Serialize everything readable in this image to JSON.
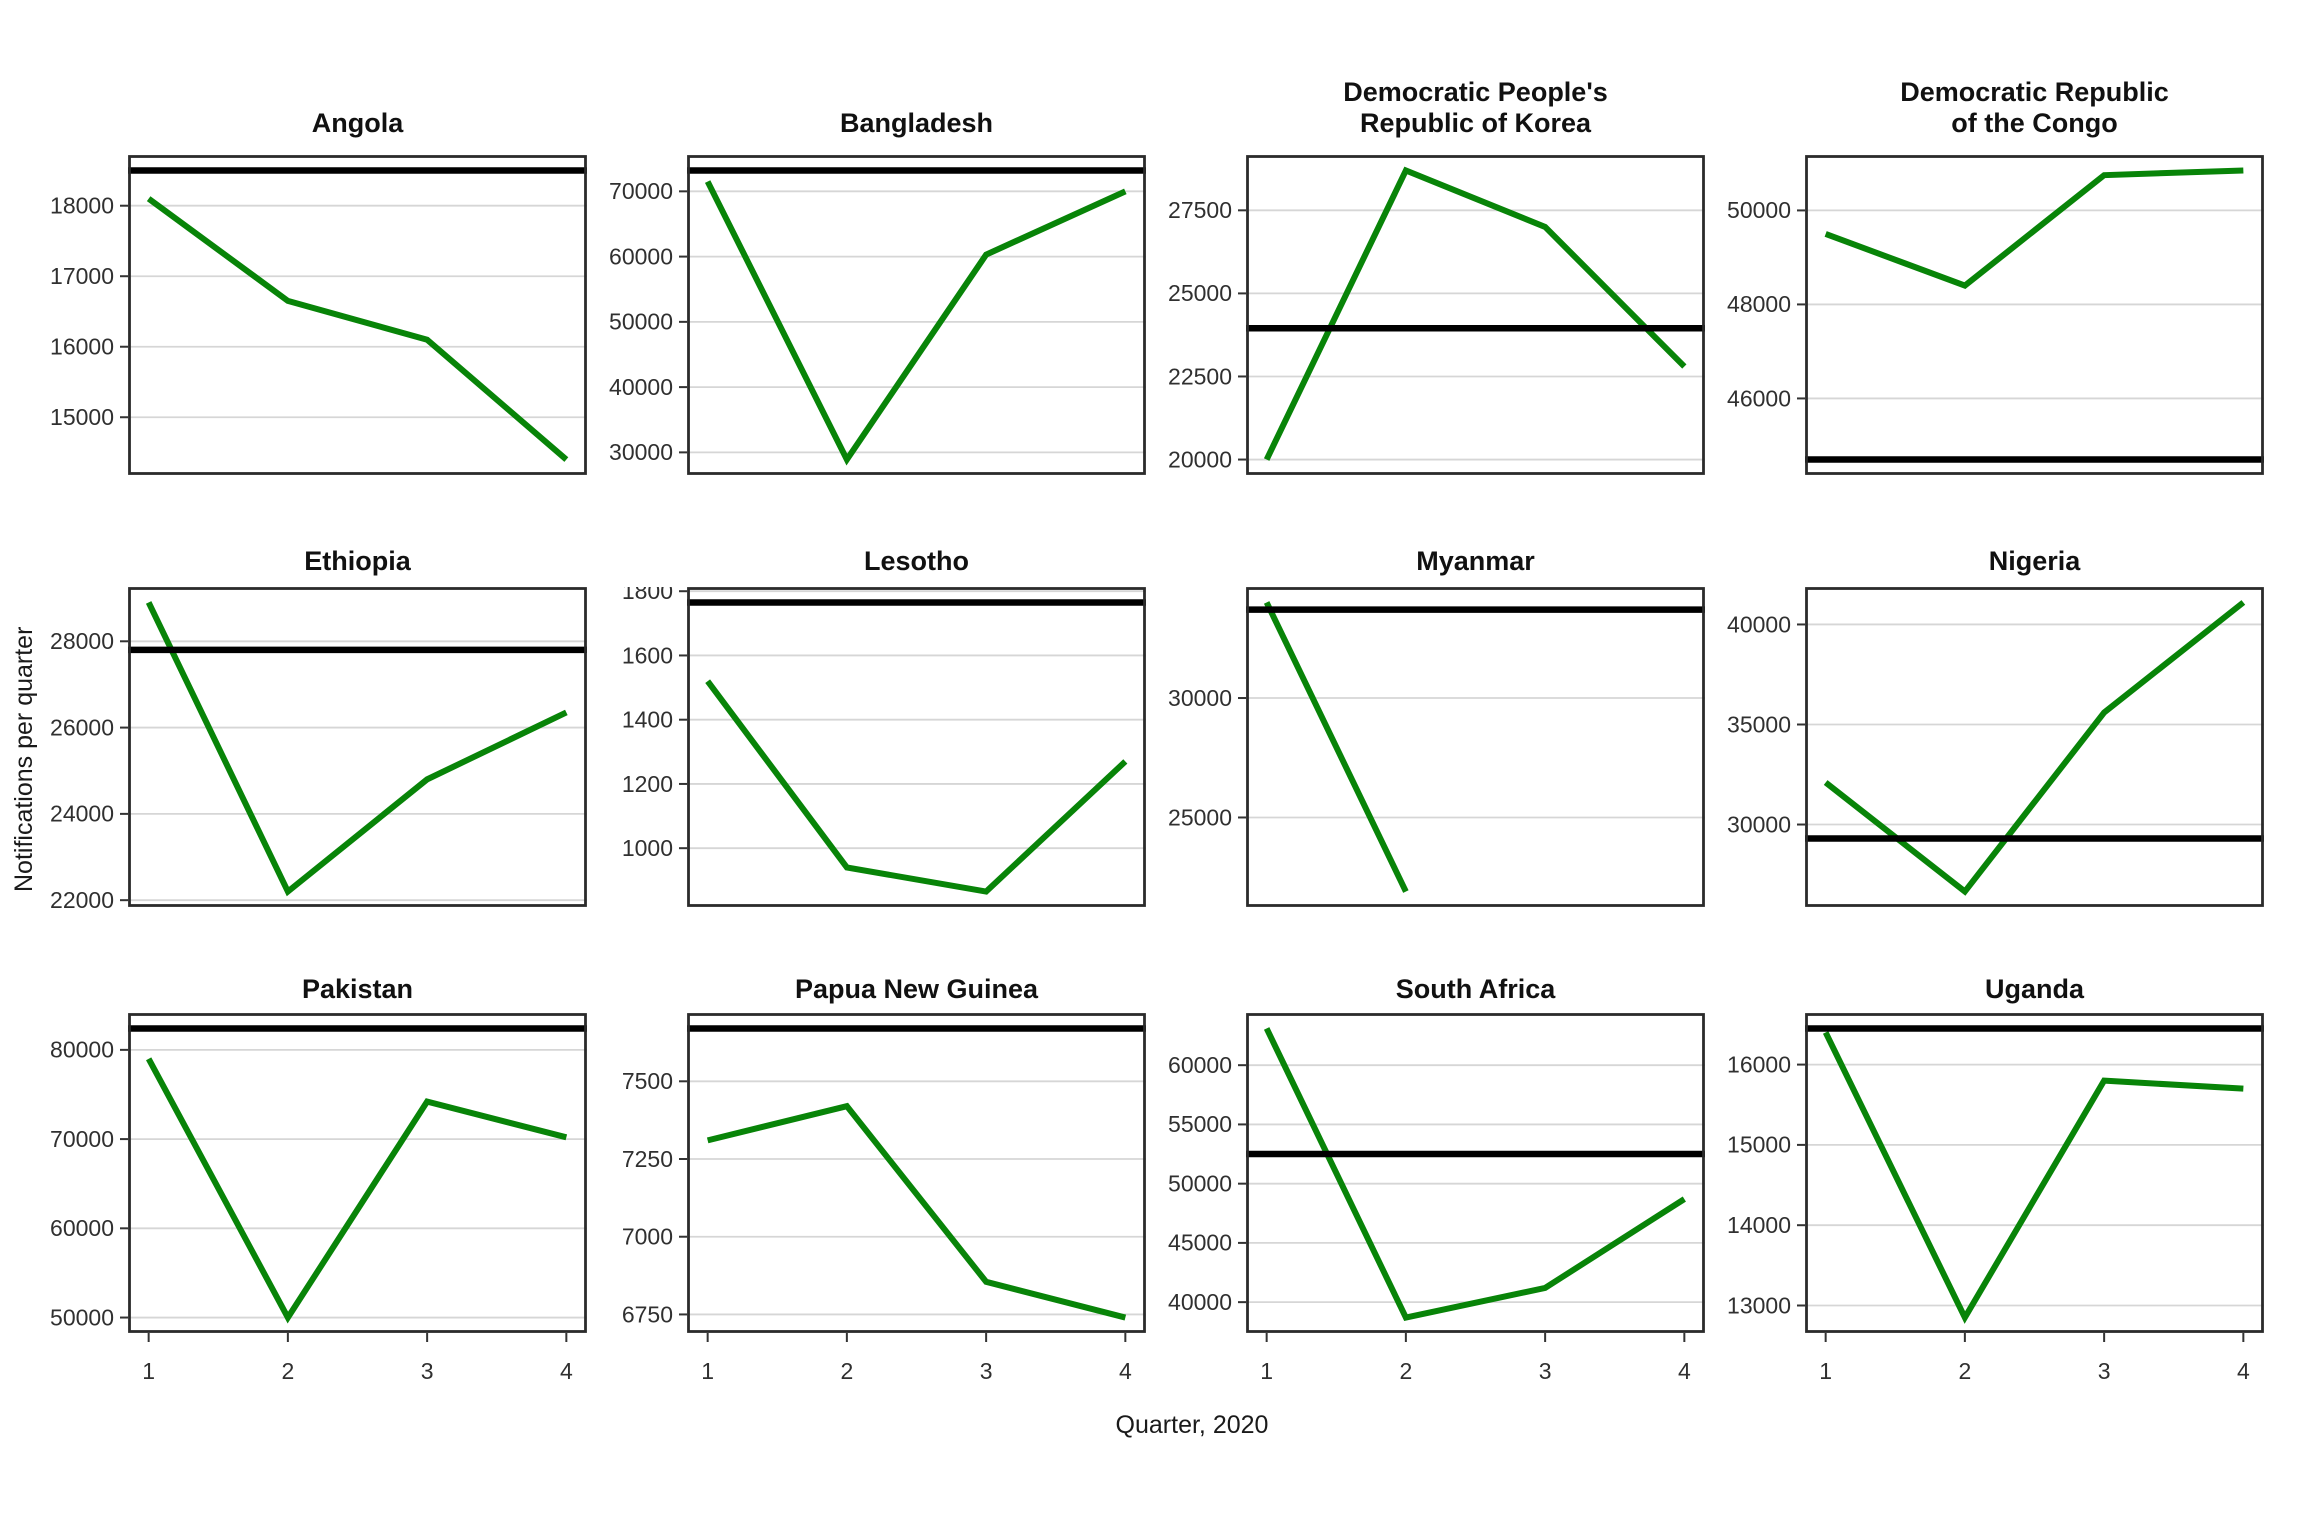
{
  "figure": {
    "ylabel": "Notifications per quarter",
    "xlabel": "Quarter, 2020"
  },
  "style": {
    "line_color": "#088408",
    "reference_color": "#000000",
    "grid_color": "#d6d6d6",
    "border_color": "#2b2b2b",
    "tick_text_color": "#303030",
    "background": "#ffffff"
  },
  "chart_data": [
    {
      "type": "line",
      "title": "Angola",
      "x": [
        1,
        2,
        3,
        4
      ],
      "values": [
        18100,
        16650,
        16100,
        14400
      ],
      "ref_line": 18500,
      "yticks": [
        15000,
        16000,
        17000,
        18000
      ],
      "xticks": [
        1,
        2,
        3,
        4
      ]
    },
    {
      "type": "line",
      "title": "Bangladesh",
      "x": [
        1,
        2,
        3,
        4
      ],
      "values": [
        71500,
        28900,
        60300,
        70000
      ],
      "ref_line": 73200,
      "yticks": [
        30000,
        40000,
        50000,
        60000,
        70000
      ],
      "xticks": [
        1,
        2,
        3,
        4
      ]
    },
    {
      "type": "line",
      "title": "Democratic People's\nRepublic of Korea",
      "x": [
        1,
        2,
        3,
        4
      ],
      "values": [
        20000,
        28700,
        27000,
        22800
      ],
      "ref_line": 23950,
      "yticks": [
        20000,
        22500,
        25000,
        27500
      ],
      "xticks": [
        1,
        2,
        3,
        4
      ]
    },
    {
      "type": "line",
      "title": "Democratic Republic\nof the Congo",
      "x": [
        1,
        2,
        3,
        4
      ],
      "values": [
        49500,
        48400,
        50750,
        50850
      ],
      "ref_line": 44700,
      "yticks": [
        46000,
        48000,
        50000
      ],
      "xticks": [
        1,
        2,
        3,
        4
      ]
    },
    {
      "type": "line",
      "title": "Ethiopia",
      "x": [
        1,
        2,
        3,
        4
      ],
      "values": [
        28900,
        22200,
        24800,
        26350
      ],
      "ref_line": 27800,
      "yticks": [
        22000,
        24000,
        26000,
        28000
      ],
      "xticks": [
        1,
        2,
        3,
        4
      ]
    },
    {
      "type": "line",
      "title": "Lesotho",
      "x": [
        1,
        2,
        3,
        4
      ],
      "values": [
        1520,
        940,
        865,
        1270
      ],
      "ref_line": 1765,
      "yticks": [
        1000,
        1200,
        1400,
        1600,
        1800
      ],
      "xticks": [
        1,
        2,
        3,
        4
      ]
    },
    {
      "type": "line",
      "title": "Myanmar",
      "x": [
        1,
        2
      ],
      "values": [
        34000,
        21900
      ],
      "ref_line": 33700,
      "yticks": [
        25000,
        30000
      ],
      "xticks": [
        1,
        2,
        3,
        4
      ]
    },
    {
      "type": "line",
      "title": "Nigeria",
      "x": [
        1,
        2,
        3,
        4
      ],
      "values": [
        32100,
        26650,
        35600,
        41100
      ],
      "ref_line": 29300,
      "yticks": [
        30000,
        35000,
        40000
      ],
      "xticks": [
        1,
        2,
        3,
        4
      ]
    },
    {
      "type": "line",
      "title": "Pakistan",
      "x": [
        1,
        2,
        3,
        4
      ],
      "values": [
        79000,
        50000,
        74200,
        70200
      ],
      "ref_line": 82400,
      "yticks": [
        50000,
        60000,
        70000,
        80000
      ],
      "xticks": [
        1,
        2,
        3,
        4
      ]
    },
    {
      "type": "line",
      "title": "Papua New Guinea",
      "x": [
        1,
        2,
        3,
        4
      ],
      "values": [
        7310,
        7420,
        6855,
        6740
      ],
      "ref_line": 7670,
      "yticks": [
        6750,
        7000,
        7250,
        7500
      ],
      "xticks": [
        1,
        2,
        3,
        4
      ]
    },
    {
      "type": "line",
      "title": "South Africa",
      "x": [
        1,
        2,
        3,
        4
      ],
      "values": [
        63100,
        38700,
        41200,
        48700
      ],
      "ref_line": 52500,
      "yticks": [
        40000,
        45000,
        50000,
        55000,
        60000
      ],
      "xticks": [
        1,
        2,
        3,
        4
      ]
    },
    {
      "type": "line",
      "title": "Uganda",
      "x": [
        1,
        2,
        3,
        4
      ],
      "values": [
        16400,
        12850,
        15800,
        15700
      ],
      "ref_line": 16450,
      "yticks": [
        13000,
        14000,
        15000,
        16000
      ],
      "xticks": [
        1,
        2,
        3,
        4
      ]
    }
  ]
}
